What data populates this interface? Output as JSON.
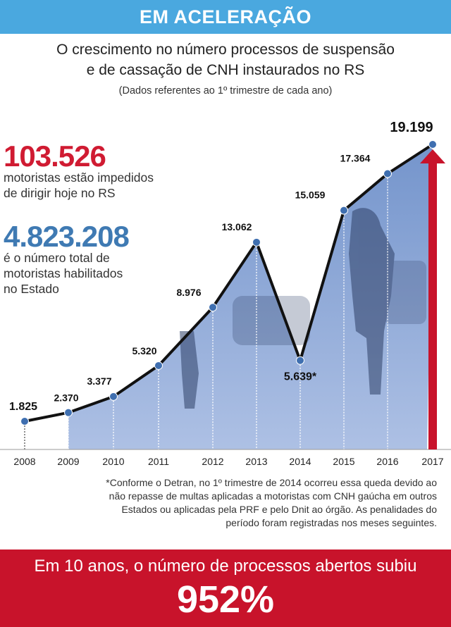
{
  "banner": {
    "text": "EM ACELERAÇÃO"
  },
  "header": {
    "title_line1": "O crescimento no número processos de suspensão",
    "title_line2": "e de cassação de CNH instaurados no RS",
    "subtitle": "(Dados referentes ao 1º trimestre de cada ano)"
  },
  "stats": {
    "blocked_value": "103.526",
    "blocked_line1": "motoristas estão impedidos",
    "blocked_line2": "de dirigir hoje no RS",
    "licensed_value": "4.823.208",
    "licensed_line1": "é o número total de",
    "licensed_line2": "motoristas habilitados",
    "licensed_line3": "no Estado"
  },
  "colors": {
    "banner": "#4aa8df",
    "red": "#c8132b",
    "blue_stat": "#3f7ab3",
    "line": "#111111",
    "point": "#3f6fb0"
  },
  "chart_data": {
    "type": "line",
    "title": "O crescimento no número processos de suspensão e de cassação de CNH instaurados no RS",
    "subtitle": "(Dados referentes ao 1º trimestre de cada ano)",
    "xlabel": "",
    "ylabel": "",
    "x": [
      "2008",
      "2009",
      "2010",
      "2011",
      "2012",
      "2013",
      "2014",
      "2015",
      "2016",
      "2017"
    ],
    "values": [
      1825,
      2370,
      3377,
      5320,
      8976,
      13062,
      5639,
      15059,
      17364,
      19199
    ],
    "labels": [
      "1.825",
      "2.370",
      "3.377",
      "5.320",
      "8.976",
      "13.062",
      "5.639*",
      "15.059",
      "17.364",
      "19.199"
    ],
    "ylim": [
      0,
      20000
    ],
    "grid": false,
    "legend": "none"
  },
  "footnote": {
    "line1": "*Conforme o Detran, no 1º trimestre de 2014 ocorreu essa queda devido ao",
    "line2": "não repasse de multas aplicadas a motoristas com CNH gaúcha em outros",
    "line3": "Estados ou aplicadas pela PRF e pelo Dnit ao órgão. As penalidades do",
    "line4": "período  foram registradas nos meses seguintes."
  },
  "bottom": {
    "line1": "Em 10 anos, o número de processos abertos subiu",
    "percent": "952%"
  }
}
